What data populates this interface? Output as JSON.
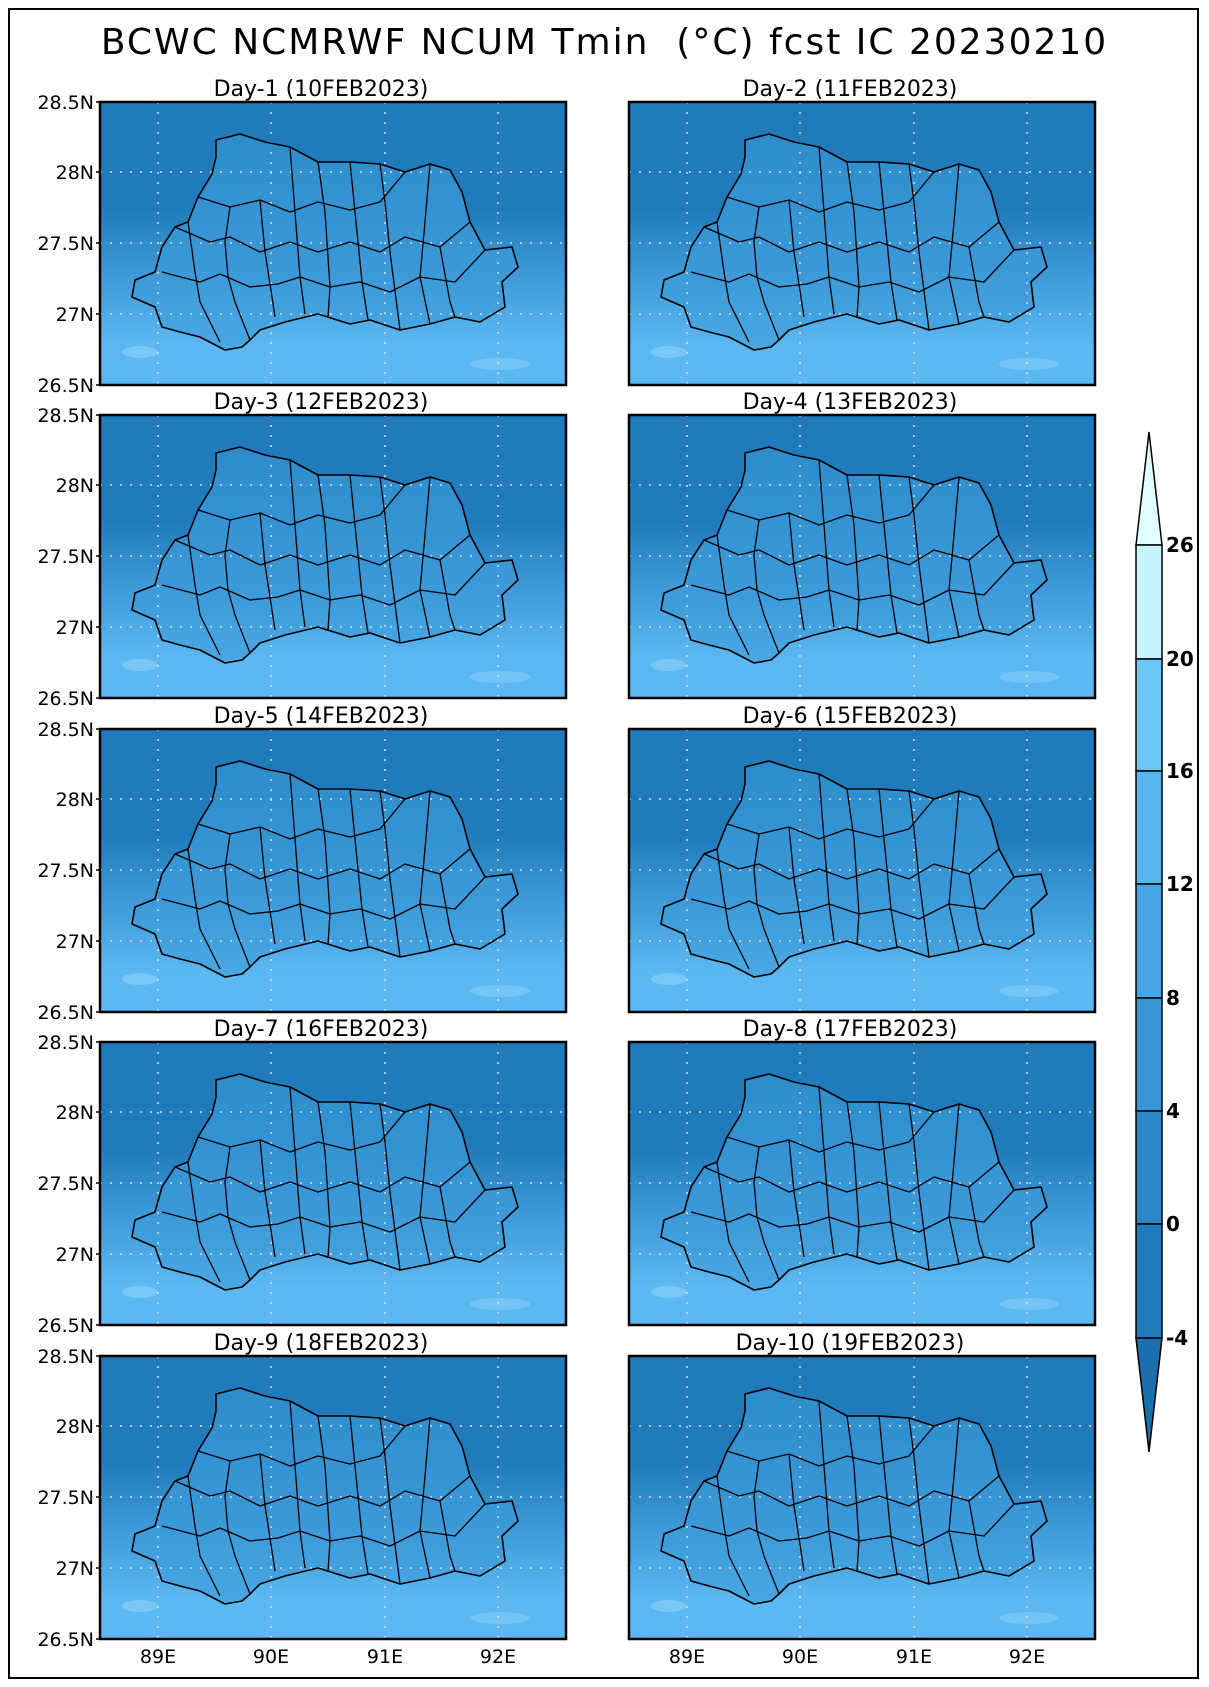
{
  "title": "BCWC NCMRWF NCUM Tmin  (°C) fcst IC 20230210",
  "panels": [
    {
      "title": "Day-1 (10FEB2023)"
    },
    {
      "title": "Day-2 (11FEB2023)"
    },
    {
      "title": "Day-3 (12FEB2023)"
    },
    {
      "title": "Day-4 (13FEB2023)"
    },
    {
      "title": "Day-5 (14FEB2023)"
    },
    {
      "title": "Day-6 (15FEB2023)"
    },
    {
      "title": "Day-7 (16FEB2023)"
    },
    {
      "title": "Day-8 (17FEB2023)"
    },
    {
      "title": "Day-9 (18FEB2023)"
    },
    {
      "title": "Day-10 (19FEB2023)"
    }
  ],
  "lat_labels": [
    "28.5N",
    "28N",
    "27.5N",
    "27N",
    "26.5N"
  ],
  "lon_labels": [
    "89E",
    "90E",
    "91E",
    "92E"
  ],
  "colorbar": {
    "labels": [
      "26",
      "20",
      "16",
      "12",
      "8",
      "4",
      "0",
      "-4"
    ],
    "colors": [
      "#e0ffff",
      "#c8f4ff",
      "#6cc6f4",
      "#58b6ee",
      "#48a6e4",
      "#3896d6",
      "#2a88c8",
      "#1f7bbb",
      "#1a70ae"
    ]
  },
  "map_colors": {
    "north": "#1f7bbb",
    "mid": "#3f9bd9",
    "south": "#5cb8f2",
    "light": "#8fd4f8",
    "grid": "#dcdcdc",
    "border": "#000000"
  }
}
